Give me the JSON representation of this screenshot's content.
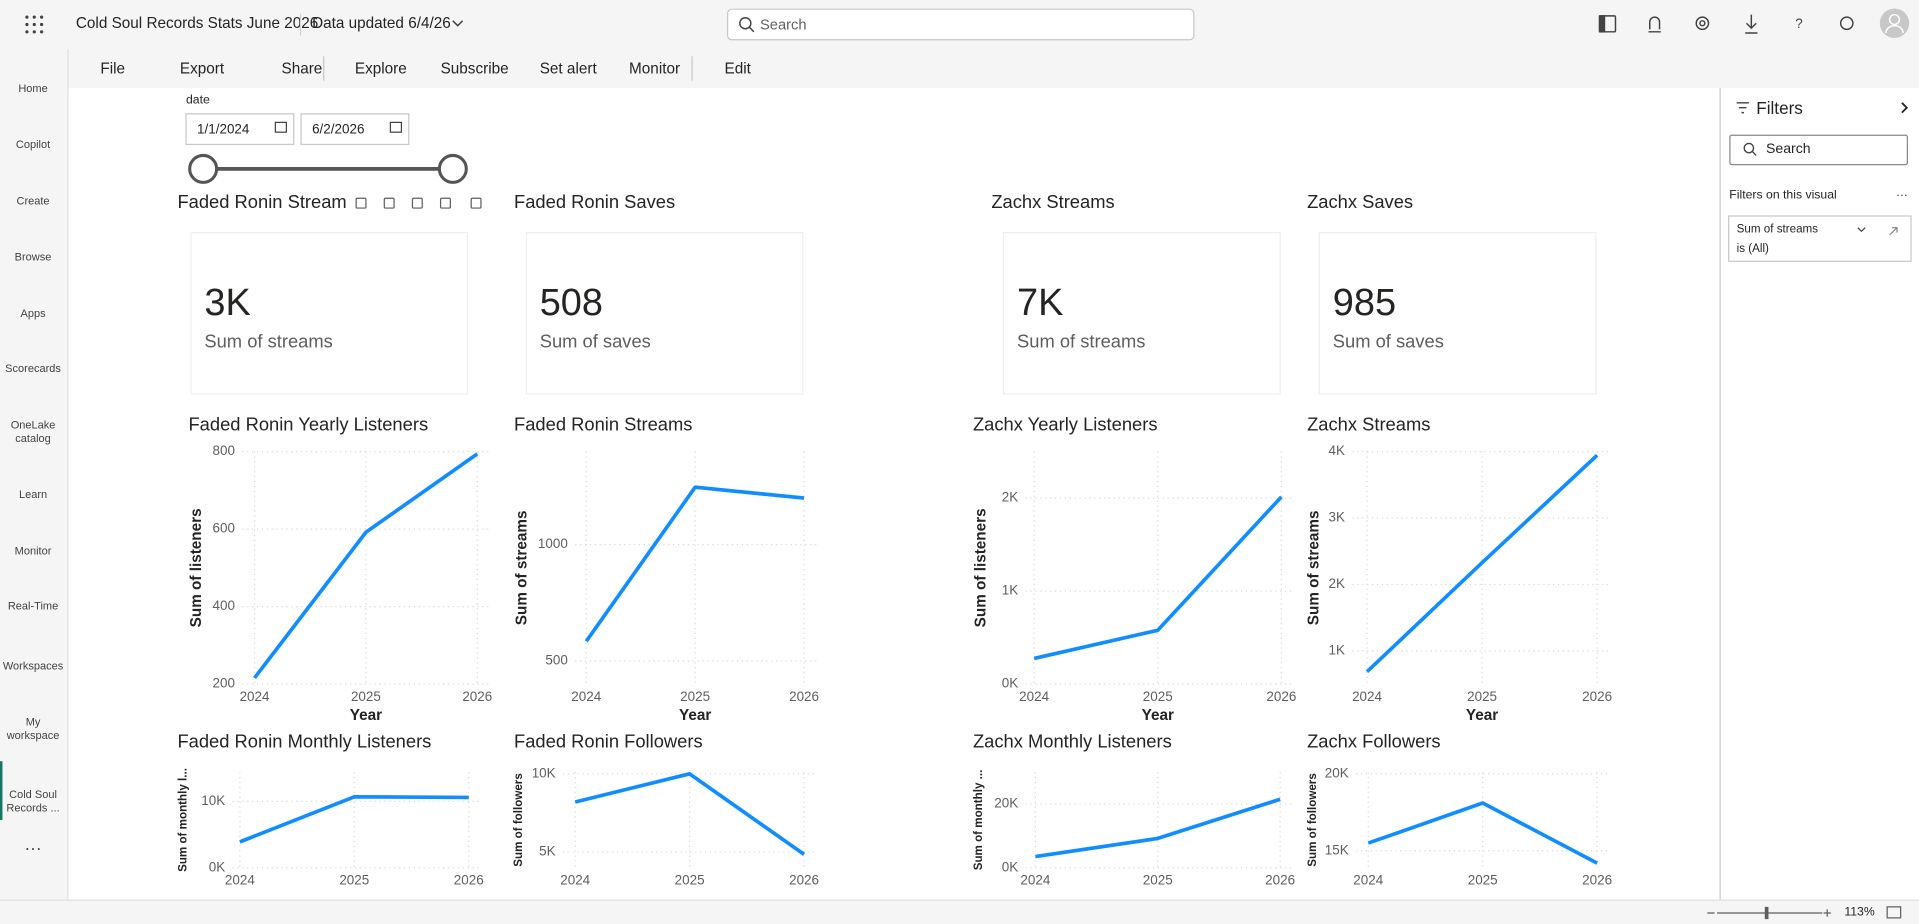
{
  "header": {
    "app_title": "Cold Soul Records Stats June 2026",
    "data_updated": "Data updated 6/4/26",
    "search_placeholder": "Search"
  },
  "nav": [
    "Home",
    "Copilot",
    "Create",
    "Browse",
    "Apps",
    "Scorecards",
    "OneLake catalog",
    "Learn",
    "Monitor",
    "Real-Time",
    "Workspaces",
    "My workspace",
    "Cold Soul Records ..."
  ],
  "toolbar": [
    "File",
    "Export",
    "Share",
    "Explore",
    "Subscribe",
    "Set alert",
    "Monitor",
    "Edit"
  ],
  "slicer": {
    "label": "date",
    "start": "1/1/2024",
    "end": "6/2/2026"
  },
  "cards": [
    {
      "title": "Faded Ronin Stream",
      "value": "3K",
      "label": "Sum of streams"
    },
    {
      "title": "Faded Ronin Saves",
      "value": "508",
      "label": "Sum of saves"
    },
    {
      "title": "Zachx Streams",
      "value": "7K",
      "label": "Sum of streams"
    },
    {
      "title": "Zachx Saves",
      "value": "985",
      "label": "Sum of saves"
    }
  ],
  "filters": {
    "title": "Filters",
    "search_placeholder": "Search",
    "section": "Filters on this visual",
    "field": "Sum of streams",
    "condition": "is (All)"
  },
  "status": {
    "zoom": "113%"
  },
  "chart_data": [
    {
      "type": "line",
      "title": "Faded Ronin Yearly Listeners",
      "categories": [
        "2024",
        "2025",
        "2026"
      ],
      "x_label": "Year",
      "y_label": "Sum of listeners",
      "color": "#118dff",
      "values": [
        216,
        592,
        794
      ],
      "ylim": [
        200,
        800
      ],
      "yticks": [
        200,
        400,
        600,
        800
      ],
      "grid": true
    },
    {
      "type": "line",
      "title": "Faded Ronin Streams",
      "categories": [
        "2024",
        "2025",
        "2026"
      ],
      "x_label": "Year",
      "y_label": "Sum of streams",
      "color": "#118dff",
      "values": [
        584,
        1247,
        1200
      ],
      "ylim": [
        400,
        1400
      ],
      "yticks": [
        500,
        1000
      ],
      "grid": true
    },
    {
      "type": "line",
      "title": "Zachx Yearly Listeners",
      "categories": [
        "2024",
        "2025",
        "2026"
      ],
      "x_label": "Year",
      "y_label": "Sum of listeners",
      "color": "#118dff",
      "values": [
        276,
        579,
        2013
      ],
      "ylim": [
        0,
        2500
      ],
      "yticks": [
        {
          "value": 0,
          "label": "0K"
        },
        {
          "value": 1000,
          "label": "1K"
        },
        {
          "value": 2000,
          "label": "2K"
        }
      ],
      "grid": true
    },
    {
      "type": "line",
      "title": "Zachx Streams",
      "categories": [
        "2024",
        "2025",
        "2026"
      ],
      "x_label": "Year",
      "y_label": "Sum of streams",
      "color": "#118dff",
      "values": [
        687,
        2328,
        3945
      ],
      "ylim": [
        500,
        4000
      ],
      "yticks": [
        {
          "value": 1000,
          "label": "1K"
        },
        {
          "value": 2000,
          "label": "2K"
        },
        {
          "value": 3000,
          "label": "3K"
        },
        {
          "value": 4000,
          "label": "4K"
        }
      ],
      "grid": true
    },
    {
      "type": "line",
      "title": "Faded Ronin Monthly Listeners",
      "categories": [
        "2024",
        "2025",
        "2026"
      ],
      "y_label": "Sum of monthly l...",
      "color": "#118dff",
      "values": [
        3900,
        10700,
        10600
      ],
      "ylim": [
        0,
        14400
      ],
      "yticks": [
        {
          "value": 0,
          "label": "0K"
        },
        {
          "value": 10000,
          "label": "10K"
        }
      ],
      "grid": true
    },
    {
      "type": "line",
      "title": "Faded Ronin Followers",
      "categories": [
        "2024",
        "2025",
        "2026"
      ],
      "y_label": "Sum of followers",
      "color": "#118dff",
      "values": [
        8200,
        10000,
        4850
      ],
      "ylim": [
        4000,
        10100
      ],
      "yticks": [
        {
          "value": 5000,
          "label": "5K"
        },
        {
          "value": 10000,
          "label": "10K"
        }
      ],
      "grid": true
    },
    {
      "type": "line",
      "title": "Zachx Monthly Listeners",
      "categories": [
        "2024",
        "2025",
        "2026"
      ],
      "y_label": "Sum of monthly ...",
      "color": "#118dff",
      "values": [
        3500,
        9200,
        21500
      ],
      "ylim": [
        0,
        30000
      ],
      "yticks": [
        {
          "value": 0,
          "label": "0K"
        },
        {
          "value": 20000,
          "label": "20K"
        }
      ],
      "grid": true
    },
    {
      "type": "line",
      "title": "Zachx Followers",
      "categories": [
        "2024",
        "2025",
        "2026"
      ],
      "y_label": "Sum of followers",
      "color": "#118dff",
      "values": [
        15500,
        18100,
        14200
      ],
      "ylim": [
        13900,
        20100
      ],
      "yticks": [
        {
          "value": 15000,
          "label": "15K"
        },
        {
          "value": 20000,
          "label": "20K"
        }
      ],
      "grid": true
    }
  ]
}
